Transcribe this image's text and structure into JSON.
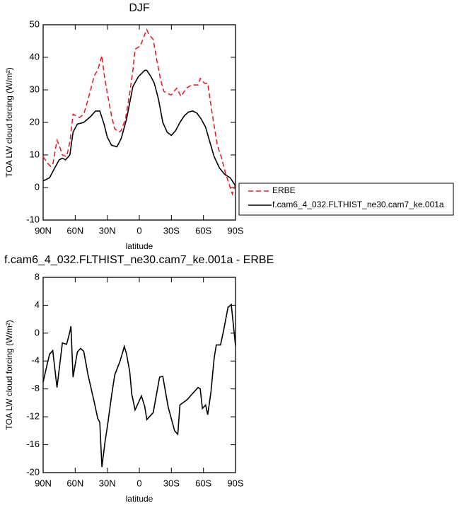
{
  "chart_data": [
    {
      "type": "line",
      "title": "DJF",
      "xlabel": "latitude",
      "ylabel": "TOA LW cloud forcing (W/m²)",
      "xlim": [
        90,
        -90
      ],
      "xticks": [
        {
          "value": 90,
          "label": "90N"
        },
        {
          "value": 60,
          "label": "60N"
        },
        {
          "value": 30,
          "label": "30N"
        },
        0,
        {
          "value": -30,
          "label": "30S"
        },
        {
          "value": -60,
          "label": "60S"
        },
        {
          "value": -90,
          "label": "90S"
        }
      ],
      "ylim": [
        -10,
        50
      ],
      "yticks": [
        -10,
        0,
        10,
        20,
        30,
        40,
        50
      ],
      "legend": "right",
      "series": [
        {
          "name": "ERBE",
          "color": "#e8202a",
          "line_style": "dashed",
          "x": [
            90,
            86,
            83,
            81,
            77,
            75,
            72,
            68,
            65,
            62,
            56,
            52,
            48,
            42,
            39,
            35,
            33,
            30,
            26,
            23,
            19,
            17,
            13,
            9,
            6,
            4,
            -1,
            -5,
            -7,
            -9,
            -13,
            -17,
            -20,
            -23,
            -29,
            -30,
            -35,
            -39,
            -44,
            -49,
            -55,
            -57,
            -61,
            -64,
            -68,
            -73,
            -77,
            -81,
            -86,
            -87,
            -90
          ],
          "values": [
            9.5,
            7.5,
            6.5,
            7,
            14.5,
            13,
            10,
            9.5,
            14,
            22.5,
            21.5,
            22.5,
            27,
            34.5,
            36,
            40.5,
            35,
            29,
            22,
            18,
            17,
            17.5,
            21,
            29,
            36,
            42.5,
            43.5,
            47,
            48.5,
            47,
            45.5,
            38,
            33,
            29.5,
            28.5,
            28.5,
            30.5,
            28,
            30.5,
            31.5,
            31.5,
            33.5,
            32,
            32,
            23,
            13,
            9,
            4,
            -1,
            -2,
            1
          ]
        },
        {
          "name": "f.cam6_4_032.FLTHIST_ne30.cam7_ke.001a",
          "color": "#000000",
          "line_style": "solid",
          "x": [
            90,
            84,
            80,
            75,
            72,
            69,
            65,
            62,
            58,
            52,
            45,
            41,
            37,
            33,
            30,
            26,
            21,
            17,
            12,
            6,
            1,
            -5,
            -7,
            -11,
            -14,
            -18,
            -22,
            -26,
            -30,
            -34,
            -38,
            -42,
            -46,
            -50,
            -54,
            -58,
            -62,
            -66,
            -70,
            -75,
            -80,
            -85,
            -90
          ],
          "values": [
            2,
            3,
            5.5,
            8.5,
            9,
            8.5,
            10,
            17,
            19.5,
            20,
            22,
            23.5,
            23.5,
            19.5,
            15.5,
            13,
            12.5,
            15,
            21,
            31,
            34,
            36,
            36,
            34,
            32,
            27,
            20,
            17,
            16,
            17.5,
            20,
            22,
            23.2,
            23.5,
            22.8,
            21,
            18.5,
            14,
            9.5,
            6,
            4,
            3,
            0.5
          ]
        }
      ]
    },
    {
      "type": "line",
      "title": "f.cam6_4_032.FLTHIST_ne30.cam7_ke.001a - ERBE",
      "xlabel": "latitude",
      "ylabel": "TOA LW cloud forcing (W/m²)",
      "xlim": [
        90,
        -90
      ],
      "xticks": [
        {
          "value": 90,
          "label": "90N"
        },
        {
          "value": 60,
          "label": "60N"
        },
        {
          "value": 30,
          "label": "30N"
        },
        0,
        {
          "value": -30,
          "label": "30S"
        },
        {
          "value": -60,
          "label": "60S"
        },
        {
          "value": -90,
          "label": "90S"
        }
      ],
      "ylim": [
        -20,
        8
      ],
      "yticks": [
        -20,
        -16,
        -12,
        -8,
        -4,
        0,
        4,
        8
      ],
      "series": [
        {
          "color": "#000000",
          "line_style": "solid",
          "x": [
            90,
            87,
            84,
            81,
            77,
            72,
            68,
            65,
            64,
            62,
            58,
            55,
            52,
            48,
            42,
            39,
            37,
            35,
            32,
            30,
            26,
            23,
            18,
            14,
            12,
            9,
            7,
            4,
            -2,
            -5,
            -7,
            -13,
            -19,
            -22,
            -27,
            -33,
            -36,
            -38,
            -45,
            -49,
            -55,
            -57,
            -59,
            -62,
            -64,
            -67,
            -70,
            -72,
            -76,
            -79,
            -83,
            -86,
            -90
          ],
          "values": [
            -7,
            -5,
            -3,
            -2.5,
            -7.8,
            -1.4,
            -1.6,
            0.2,
            1,
            -6.3,
            -2.7,
            -2.2,
            -2.6,
            -6,
            -10,
            -12.2,
            -12.8,
            -19.2,
            -15.5,
            -13.5,
            -9,
            -6,
            -4,
            -1.9,
            -3,
            -5.5,
            -8.8,
            -11,
            -9,
            -10.5,
            -12.4,
            -11.4,
            -6.3,
            -6.2,
            -10.6,
            -14,
            -14.5,
            -10.3,
            -9.5,
            -8.8,
            -7.8,
            -8,
            -10.8,
            -10.3,
            -11.7,
            -8.5,
            -3.6,
            -1.7,
            -1.7,
            0.5,
            3.7,
            4.1,
            -1.8
          ]
        }
      ]
    }
  ]
}
